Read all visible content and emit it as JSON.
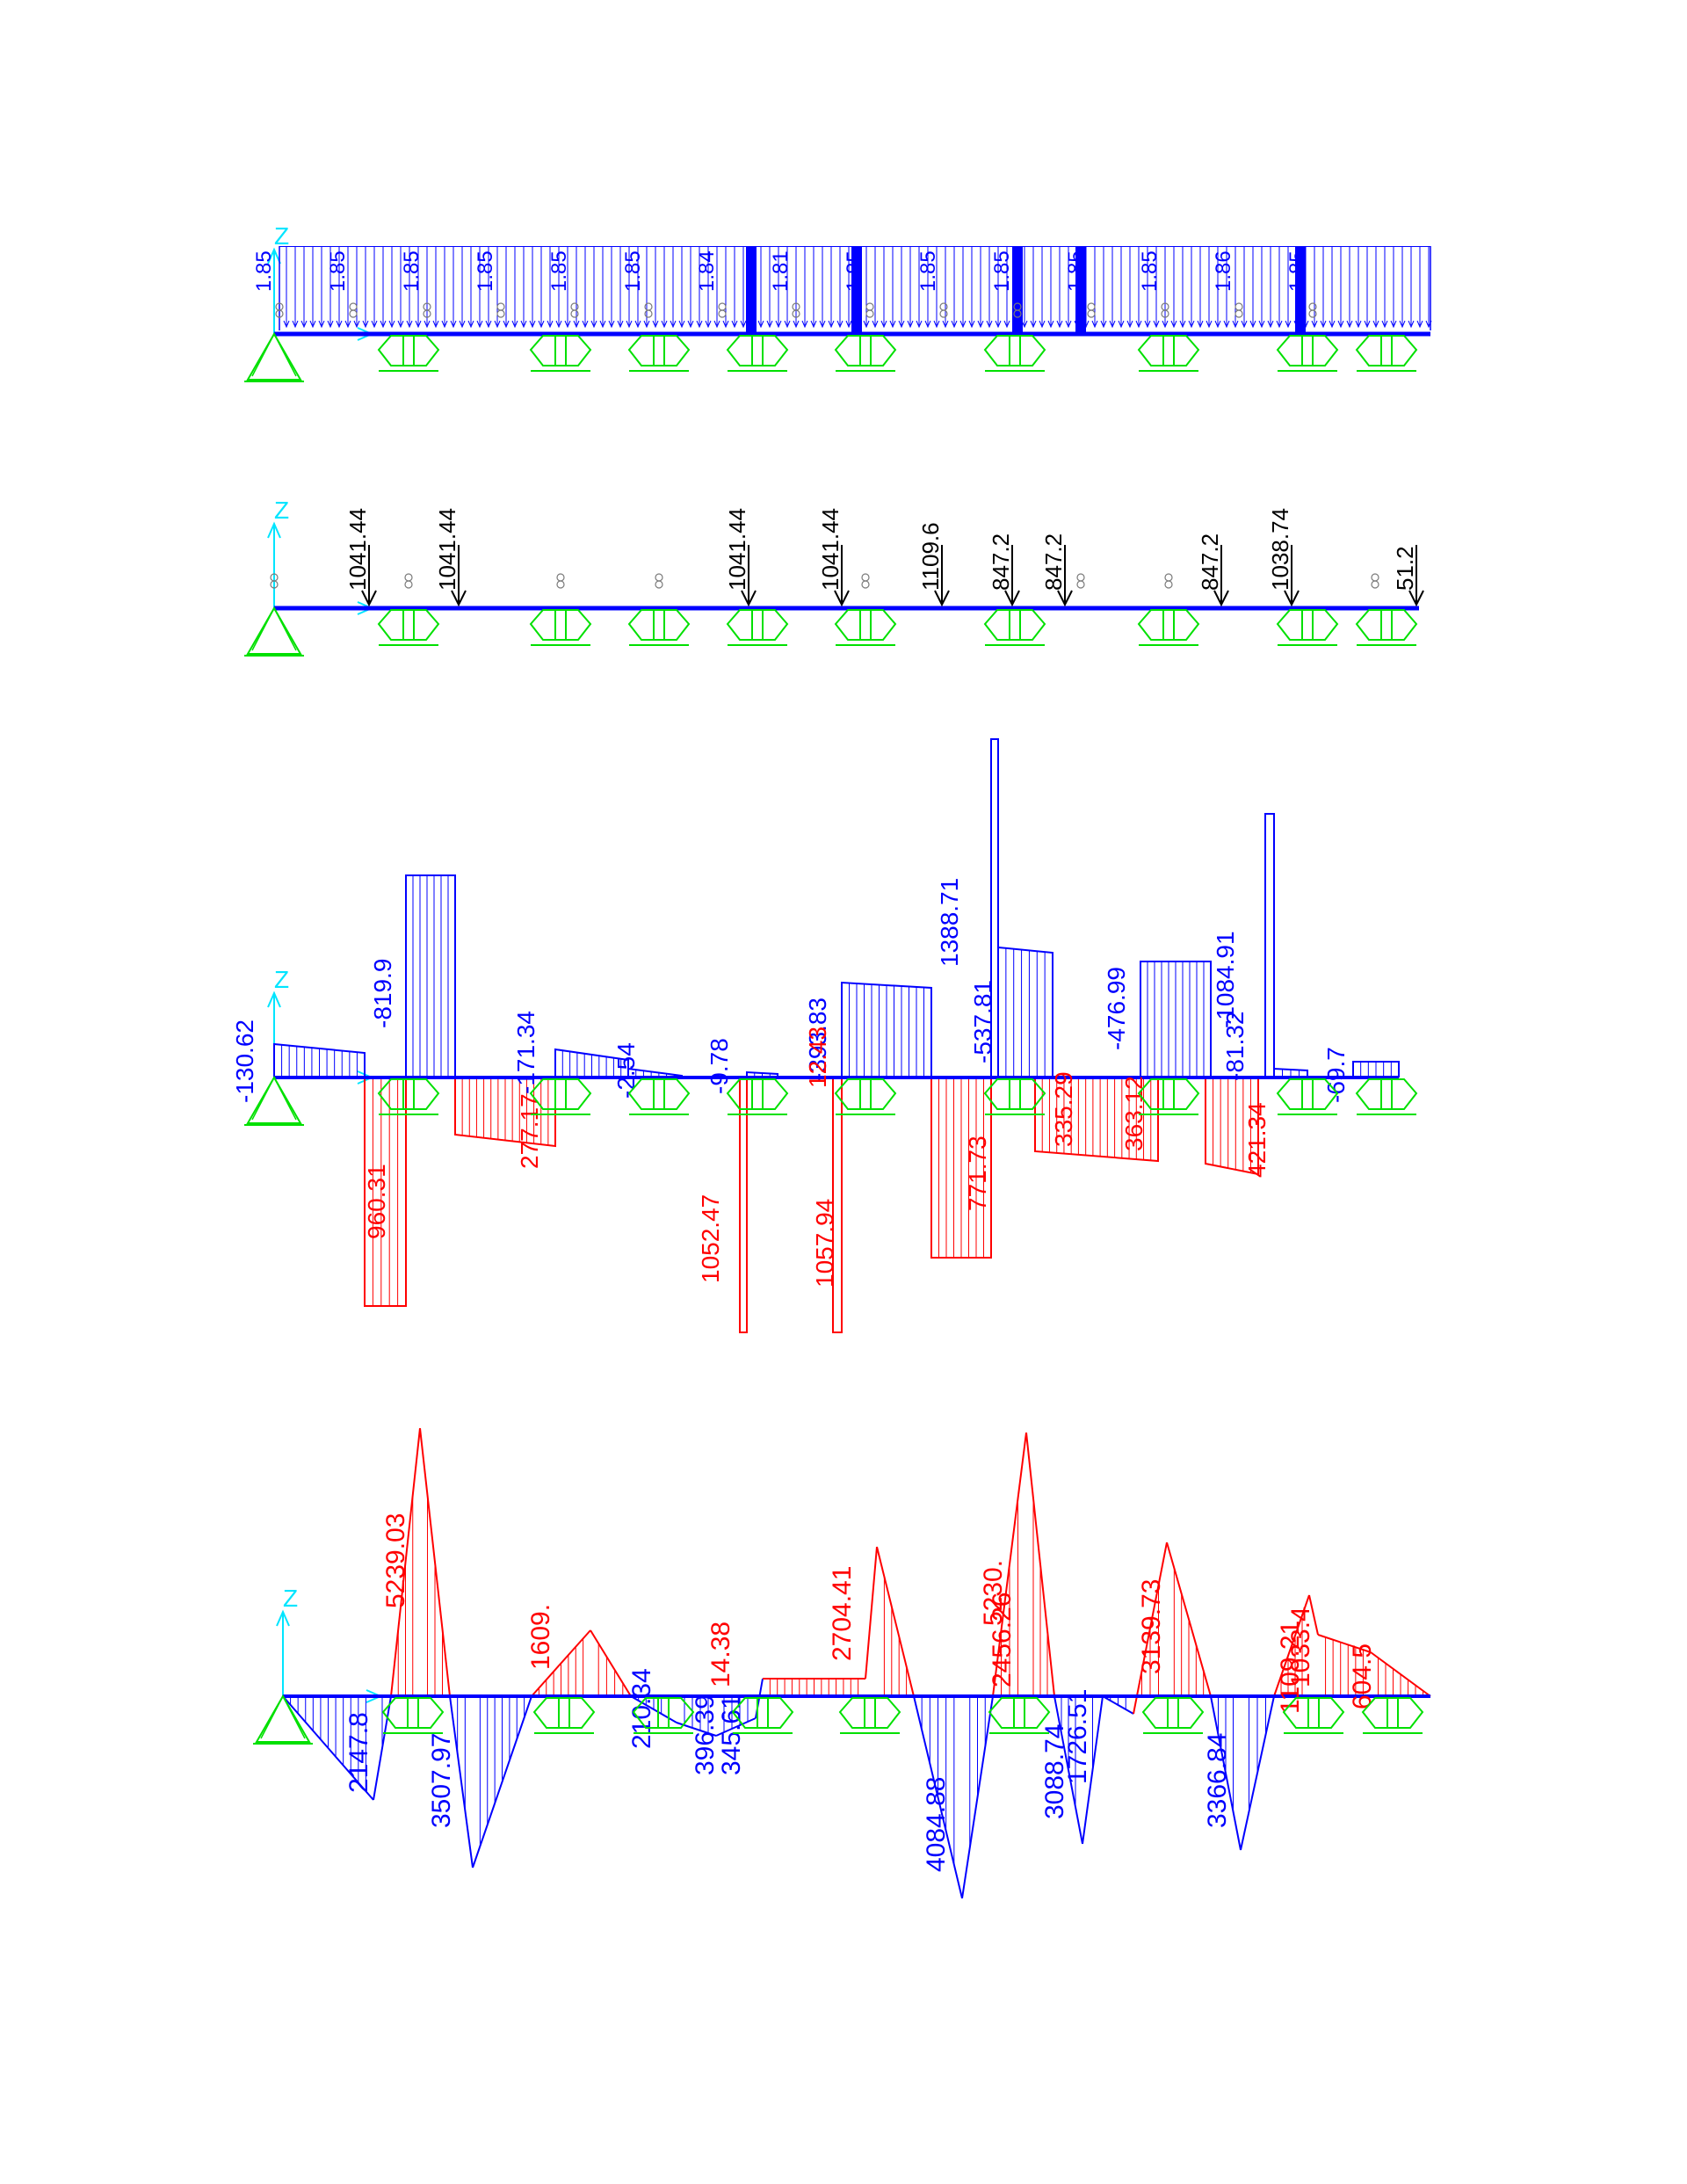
{
  "axis_label": "Z",
  "colors": {
    "support": "#00e000",
    "axis": "#00e5ff",
    "member": "#0000ff",
    "distributed_load": "#0000ff",
    "point_load": "#000000",
    "negative": "#0000ff",
    "positive": "#ff0000",
    "hinge_marker": "#7a7a7a"
  },
  "supports": [
    {
      "type": "pin"
    },
    {
      "type": "roller"
    },
    {
      "type": "roller"
    },
    {
      "type": "roller"
    },
    {
      "type": "roller"
    },
    {
      "type": "roller"
    },
    {
      "type": "roller"
    },
    {
      "type": "roller"
    },
    {
      "type": "roller"
    },
    {
      "type": "roller"
    }
  ],
  "panel_distributed": {
    "labels": [
      "1.85",
      "1.85",
      "1.85",
      "1.85",
      "1.85",
      "1.85",
      "1.84",
      "1.81",
      "1.85",
      "1.85",
      "1.85",
      "1.85",
      "1.85",
      "1.86",
      "1.85"
    ]
  },
  "panel_point": {
    "loads": [
      "1041.44",
      "1041.44",
      "1041.44",
      "1041.44",
      "1109.6",
      "847.2",
      "847.2",
      "847.2",
      "1038.74",
      "51.2"
    ]
  },
  "panel_shear": {
    "labels_negative": [
      "-130.62",
      "-819.9",
      "-171.34",
      "-2.54",
      "-9.78",
      "-393.83",
      "-537.81",
      "1388.71",
      "-476.99",
      "-1084.91",
      "-81.32",
      "-69.7"
    ],
    "labels_positive": [
      "960.31",
      "277.17",
      "1052.47",
      "12.43",
      "1057.94",
      "771.73",
      "335.29",
      "363.12",
      "421.34"
    ]
  },
  "panel_moment": {
    "labels_positive": [
      "5239.03",
      "1609.",
      "14.38",
      "2704.41",
      "5230.",
      "2456.26",
      "3139.73",
      "1109.21",
      "1033.4",
      "604.5"
    ],
    "labels_negative": [
      "2147.8",
      "3507.97",
      "210.34",
      "396.39",
      "345.61",
      "4084.88",
      "3088.74",
      "1726.51",
      "3366.84"
    ]
  }
}
